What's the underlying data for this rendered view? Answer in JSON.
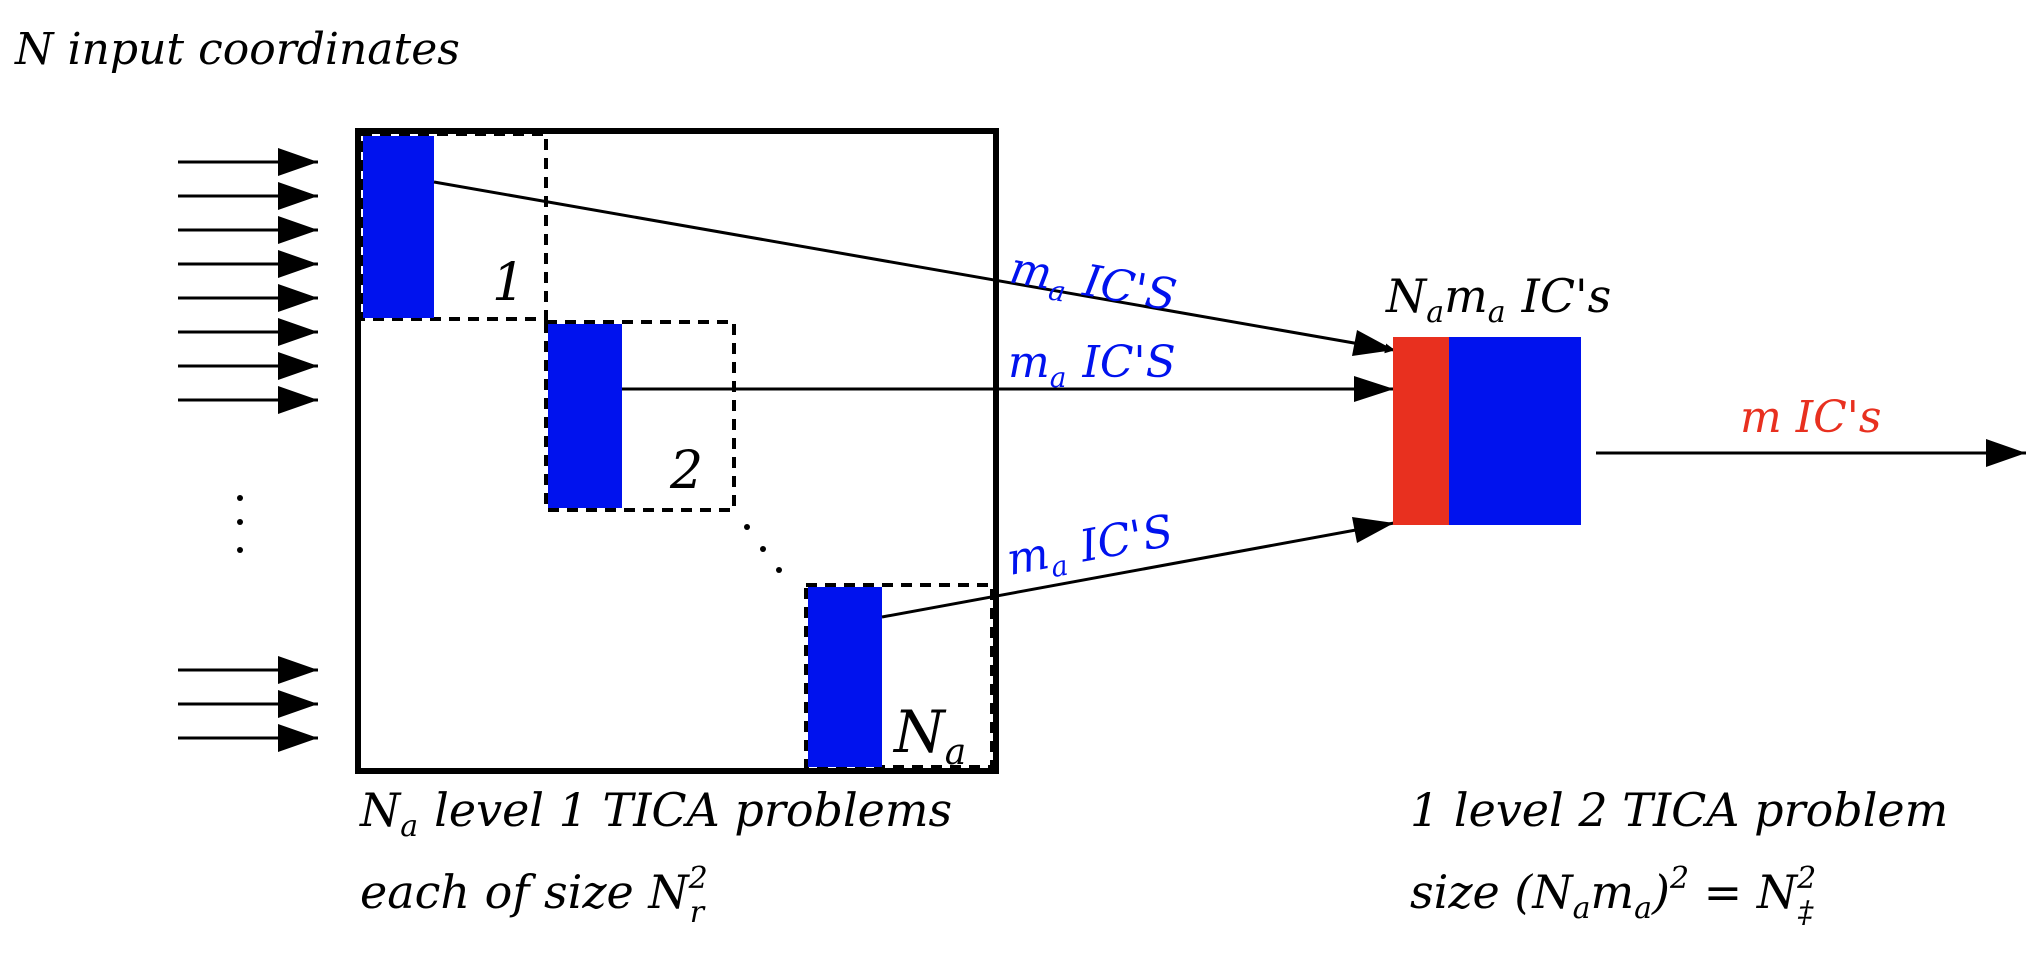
{
  "input_label": "N input coordinates",
  "input_dots": ". . .",
  "block_labels": {
    "first": "1",
    "second": "2",
    "last": "N",
    "last_sub": "a"
  },
  "ic_label": {
    "m": "m",
    "sub": "a",
    "text": "IC'S"
  },
  "merged_label": {
    "N": "N",
    "sub1": "a",
    "m": "m",
    "sub2": "a",
    "text": "IC's"
  },
  "output_label": "m IC's",
  "level1_line1": {
    "N": "N",
    "sub": "a",
    "text": "level 1 TICA problems"
  },
  "level1_line2": {
    "text": "each of size N",
    "sup": "2",
    "sub": "r"
  },
  "level2_line1": "1 level 2 TICA problem",
  "level2_line2": {
    "prefix": "size (N",
    "sub1": "a",
    "m": "m",
    "sub2": "a",
    "close": ")",
    "sup1": "2",
    "eq": " = N",
    "sup2": "2",
    "sub3": "‡"
  },
  "colors": {
    "ic_blue": "#0012ee",
    "ic_red": "#e8301f",
    "line": "#000000"
  }
}
